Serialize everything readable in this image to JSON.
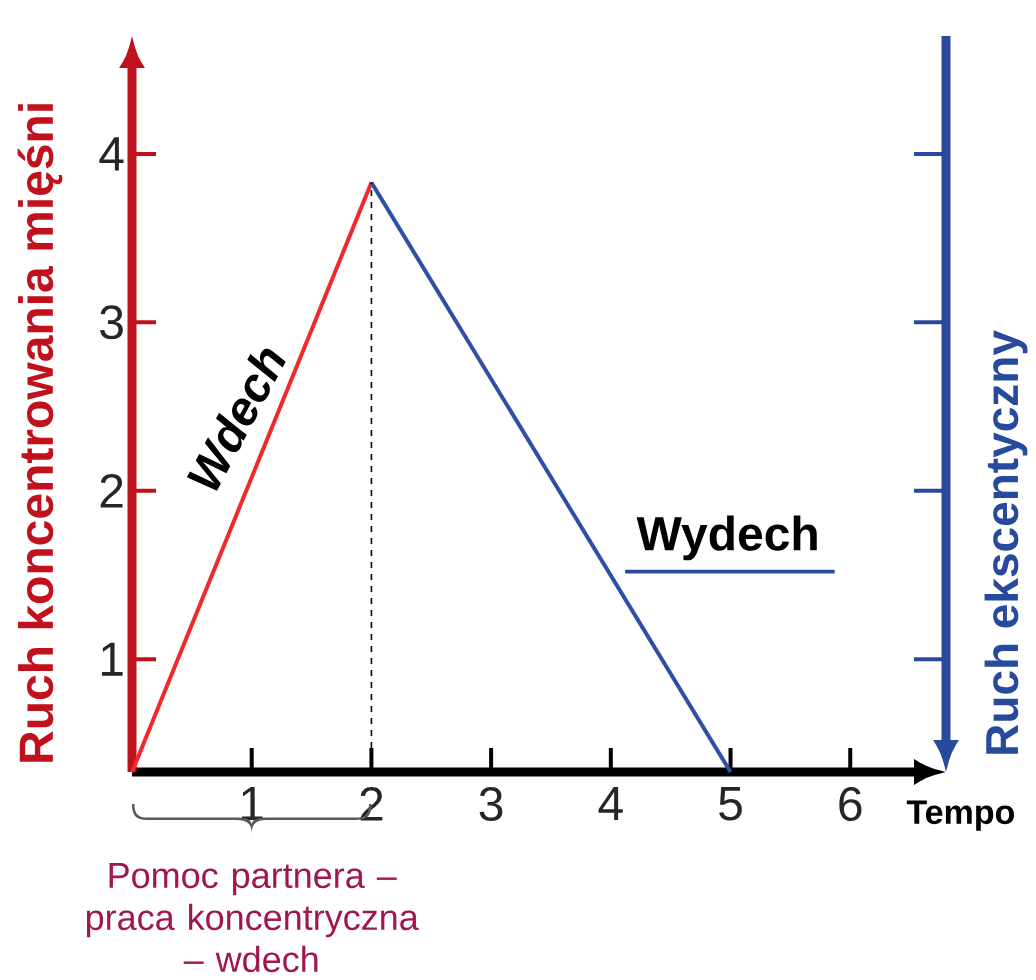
{
  "chart_data": {
    "type": "line",
    "xlabel": "Tempo",
    "ylabel": "Ruch koncentrowania mięśni",
    "y2label": "Ruch ekscentyczny",
    "series": [
      {
        "color": "#ee2a2a",
        "x": [
          0,
          2
        ],
        "values": [
          0.33,
          3.83
        ]
      },
      {
        "color": "#2e4fa3",
        "x": [
          2,
          5
        ],
        "values": [
          3.83,
          0.33
        ]
      }
    ],
    "xlim": [
      0,
      6.8
    ],
    "ylim": [
      0.33,
      4.7
    ],
    "xticks": [
      1,
      2,
      3,
      4,
      5,
      6
    ],
    "yticks": [
      1,
      2,
      3,
      4
    ],
    "ref_lines": [
      {
        "axis": "x",
        "value": 2,
        "color": "#000000",
        "line_style": "dashed"
      }
    ],
    "annotations": [
      "Wdech",
      "Wydech",
      "Pomoc partnera – praca koncentryczna – wdech"
    ],
    "marker": "none",
    "line_style": "solid"
  }
}
